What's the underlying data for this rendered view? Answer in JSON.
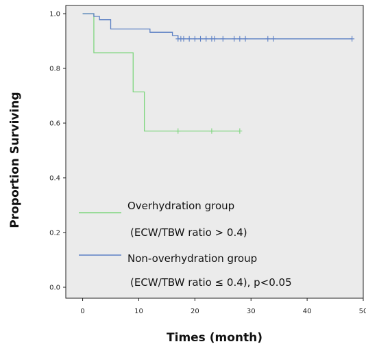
{
  "chart_data": {
    "type": "line",
    "subtype": "kaplan-meier survival curve (step)",
    "xlabel": "Times (month)",
    "ylabel": "Proportion Surviving",
    "xlim": [
      -3,
      50
    ],
    "ylim": [
      -0.04,
      1.03
    ],
    "x_ticks": [
      0,
      10,
      20,
      30,
      40,
      50
    ],
    "y_ticks": [
      0.0,
      0.2,
      0.4,
      0.6,
      0.8,
      1.0
    ],
    "x_tick_labels": [
      "0",
      "10",
      "20",
      "30",
      "40",
      "50"
    ],
    "y_tick_labels": [
      "0.0",
      "0.2",
      "0.4",
      "0.6",
      "0.8",
      "1.0"
    ],
    "grid": false,
    "plot_background": "#ebebeb",
    "legend_position": "lower-left inside plot",
    "series": [
      {
        "name": "Overhydration group",
        "legend_lines": [
          "Overhydration group",
          "(ECW/TBW ratio > 0.4)"
        ],
        "color": "#7ed67e",
        "steps": [
          [
            0,
            1.0
          ],
          [
            2,
            0.857
          ],
          [
            9,
            0.714
          ],
          [
            11,
            0.571
          ],
          [
            28,
            0.571
          ]
        ],
        "censored_x": [
          17,
          23,
          28
        ]
      },
      {
        "name": "Non-overhydration group",
        "legend_lines": [
          "Non-overhydration group",
          "(ECW/TBW ratio ≤ 0.4),  p<0.05"
        ],
        "color": "#5b7fc4",
        "steps": [
          [
            0,
            1.0
          ],
          [
            2,
            0.99
          ],
          [
            3,
            0.978
          ],
          [
            5,
            0.944
          ],
          [
            12,
            0.932
          ],
          [
            16,
            0.92
          ],
          [
            17,
            0.908
          ],
          [
            48,
            0.908
          ]
        ],
        "censored_x": [
          17,
          17.5,
          18,
          19,
          20,
          21,
          22,
          23,
          23.5,
          25,
          27,
          28,
          29,
          33,
          34,
          48
        ]
      }
    ]
  }
}
